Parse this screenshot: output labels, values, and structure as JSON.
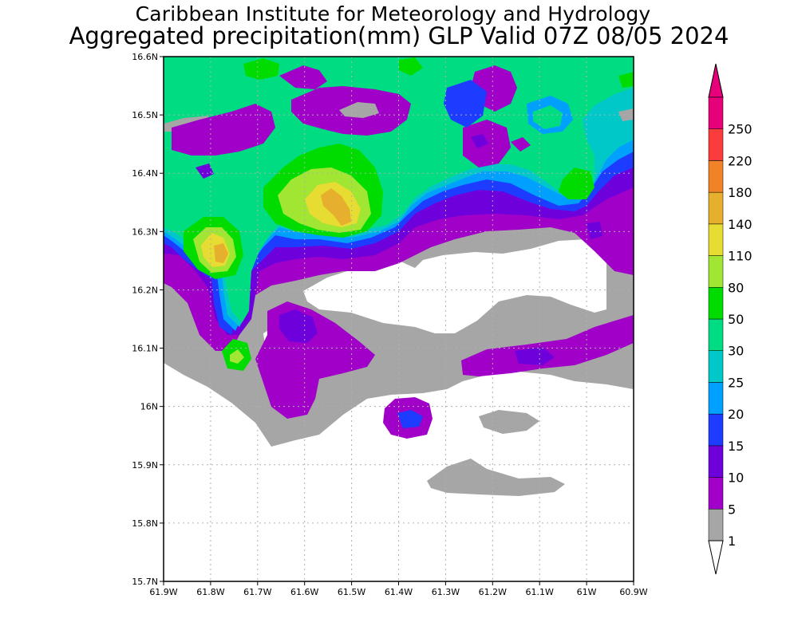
{
  "title_line1": "Caribbean Institute for Meteorology and Hydrology",
  "title_line2": "Aggregated precipitation(mm) GLP Valid 07Z 08/05 2024",
  "map": {
    "lat_labels": [
      "16.6N",
      "16.5N",
      "16.4N",
      "16.3N",
      "16.2N",
      "16.1N",
      "16N",
      "15.9N",
      "15.8N",
      "15.7N"
    ],
    "lon_labels": [
      "61.9W",
      "61.8W",
      "61.7W",
      "61.6W",
      "61.5W",
      "61.4W",
      "61.3W",
      "61.2W",
      "61.1W",
      "61W",
      "60.9W"
    ]
  },
  "legend": {
    "labels": [
      "1",
      "5",
      "10",
      "15",
      "20",
      "25",
      "30",
      "50",
      "80",
      "110",
      "140",
      "180",
      "220",
      "250"
    ],
    "colors": [
      "#a6a6a6",
      "#a000c8",
      "#6e00dc",
      "#1e3cff",
      "#00a0ff",
      "#00c8c8",
      "#00dc82",
      "#00dc00",
      "#a0e632",
      "#e6dc32",
      "#e6af2d",
      "#f08228",
      "#fa3c3c",
      "#e6007a"
    ],
    "below_color": "#ffffff",
    "above_color": "#e6007a"
  }
}
